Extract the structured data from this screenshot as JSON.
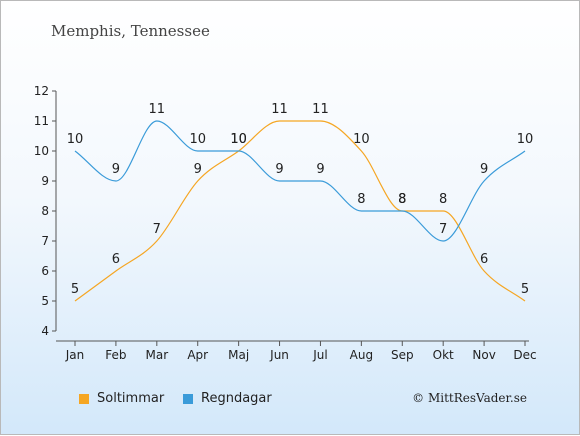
{
  "header": {
    "title": "Memphis, Tennessee"
  },
  "footer": {
    "credit": "© MittResVader.se"
  },
  "colors": {
    "sun": "#f5a623",
    "rain": "#3a9bd9"
  },
  "chart_data": {
    "type": "line",
    "title": "Memphis, Tennessee",
    "categories": [
      "Jan",
      "Feb",
      "Mar",
      "Apr",
      "Maj",
      "Jun",
      "Jul",
      "Aug",
      "Sep",
      "Okt",
      "Nov",
      "Dec"
    ],
    "ylim": [
      4,
      12
    ],
    "yticks": [
      4,
      5,
      6,
      7,
      8,
      9,
      10,
      11,
      12
    ],
    "grid": false,
    "legend_position": "bottom-left",
    "series": [
      {
        "name": "Soltimmar",
        "color": "#f5a623",
        "values": [
          5,
          6,
          7,
          9,
          10,
          11,
          11,
          10,
          8,
          8,
          6,
          5
        ]
      },
      {
        "name": "Regndagar",
        "color": "#3a9bd9",
        "values": [
          10,
          9,
          11,
          10,
          10,
          9,
          9,
          8,
          8,
          7,
          9,
          10
        ]
      }
    ]
  }
}
